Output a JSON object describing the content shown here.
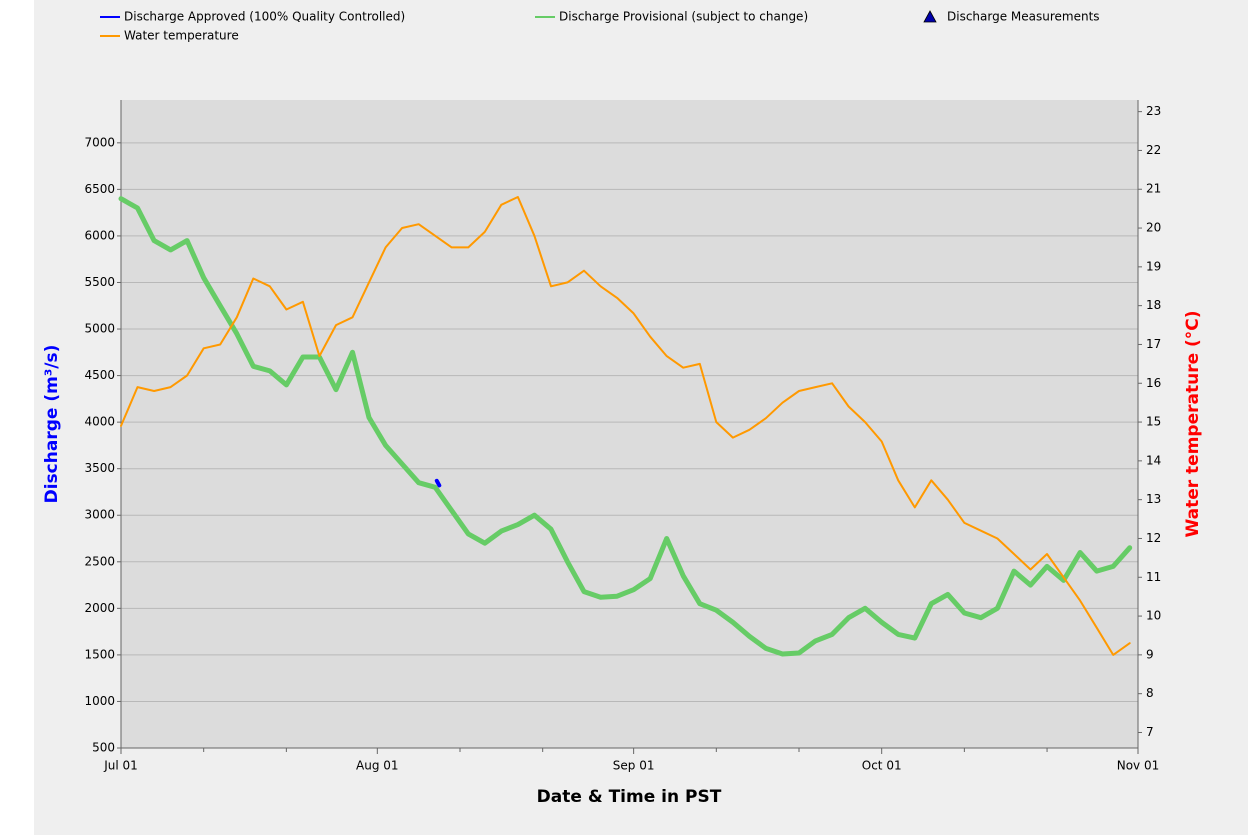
{
  "chart_data": {
    "type": "line",
    "xlabel": "Date & Time in PST",
    "ylabel": "Discharge (m³/s)",
    "y2label": "Water temperature (°C)",
    "x": [
      0,
      2,
      4,
      6,
      8,
      10,
      12,
      14,
      16,
      18,
      20,
      22,
      24,
      26,
      28,
      30,
      32,
      34,
      36,
      38,
      40,
      42,
      44,
      46,
      48,
      50,
      52,
      54,
      56,
      58,
      60,
      62,
      64,
      66,
      68,
      70,
      72,
      74,
      76,
      78,
      80,
      82,
      84,
      86,
      88,
      90,
      92,
      94,
      96,
      98,
      100,
      102,
      104,
      106,
      108,
      110,
      112,
      114,
      116,
      118,
      120,
      122
    ],
    "xlim": [
      0,
      123
    ],
    "xticks": [
      {
        "value": 0,
        "label": "Jul 01"
      },
      {
        "value": 31,
        "label": "Aug 01"
      },
      {
        "value": 62,
        "label": "Sep 01"
      },
      {
        "value": 92,
        "label": "Oct 01"
      },
      {
        "value": 123,
        "label": "Nov 01"
      }
    ],
    "xminorticks": [
      10,
      20,
      41,
      51,
      72,
      82,
      102,
      112
    ],
    "ylim": [
      500,
      7460
    ],
    "yticks": [
      500,
      1000,
      1500,
      2000,
      2500,
      3000,
      3500,
      4000,
      4500,
      5000,
      5500,
      6000,
      6500,
      7000
    ],
    "y2lim": [
      6.6,
      23.3
    ],
    "y2ticks": [
      7,
      8,
      9,
      10,
      11,
      12,
      13,
      14,
      15,
      16,
      17,
      18,
      19,
      20,
      21,
      22,
      23
    ],
    "grid": true,
    "series": [
      {
        "name": "Discharge Approved (100% Quality Controlled)",
        "color": "#0000ff",
        "x": [
          38.2,
          38.5
        ],
        "values": [
          3370,
          3320
        ]
      },
      {
        "name": "Discharge Provisional (subject to change)",
        "color": "#66cc66",
        "values": [
          6400,
          6300,
          5950,
          5850,
          5950,
          5550,
          5250,
          4950,
          4600,
          4550,
          4400,
          4700,
          4700,
          4350,
          4750,
          4050,
          3750,
          3550,
          3350,
          3300,
          3050,
          2800,
          2700,
          2830,
          2900,
          3000,
          2850,
          2500,
          2180,
          2120,
          2130,
          2200,
          2320,
          2750,
          2350,
          2050,
          1980,
          1850,
          1700,
          1570,
          1510,
          1520,
          1650,
          1720,
          1900,
          2000,
          1850,
          1720,
          1680,
          2050,
          2150,
          1950,
          1900,
          2000,
          2400,
          2250,
          2450,
          2300,
          2600,
          2400,
          2450,
          2650
        ]
      },
      {
        "name": "Discharge Measurements",
        "color": "#0000aa",
        "marker": "triangle",
        "x": [],
        "values": []
      },
      {
        "name": "Water temperature",
        "color": "#ff9900",
        "axis": "y2",
        "values": [
          14.9,
          15.9,
          15.8,
          15.9,
          16.2,
          16.9,
          17.0,
          17.7,
          18.7,
          18.5,
          17.9,
          18.1,
          16.7,
          17.5,
          17.7,
          18.6,
          19.5,
          20.0,
          20.1,
          19.8,
          19.5,
          19.5,
          19.9,
          20.6,
          20.8,
          19.8,
          18.5,
          18.6,
          18.9,
          18.5,
          18.2,
          17.8,
          17.2,
          16.7,
          16.4,
          16.5,
          15.0,
          14.6,
          14.8,
          15.1,
          15.5,
          15.8,
          15.9,
          16.0,
          15.4,
          15.0,
          14.5,
          13.5,
          12.8,
          13.5,
          13.0,
          12.4,
          12.2,
          12.0,
          11.6,
          11.2,
          11.6,
          11.0,
          10.4,
          9.7,
          9.0,
          9.3
        ]
      }
    ]
  }
}
